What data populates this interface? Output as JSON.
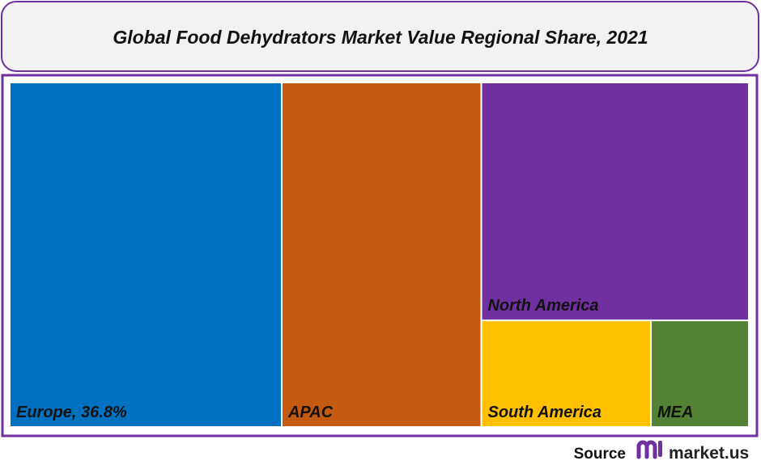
{
  "chart_data": {
    "type": "treemap",
    "title": "Global Food Dehydrators Market Value Regional Share, 2021",
    "categories": [
      "Europe, 36.8%",
      "APAC",
      "North America",
      "South America",
      "MEA"
    ],
    "values": [
      36.8,
      27,
      25,
      7.1,
      4.1
    ],
    "colors": [
      "#0070c0",
      "#c55a11",
      "#7030a0",
      "#ffc000",
      "#548235"
    ]
  },
  "footer": {
    "label": "Source",
    "brand": "market.us"
  }
}
